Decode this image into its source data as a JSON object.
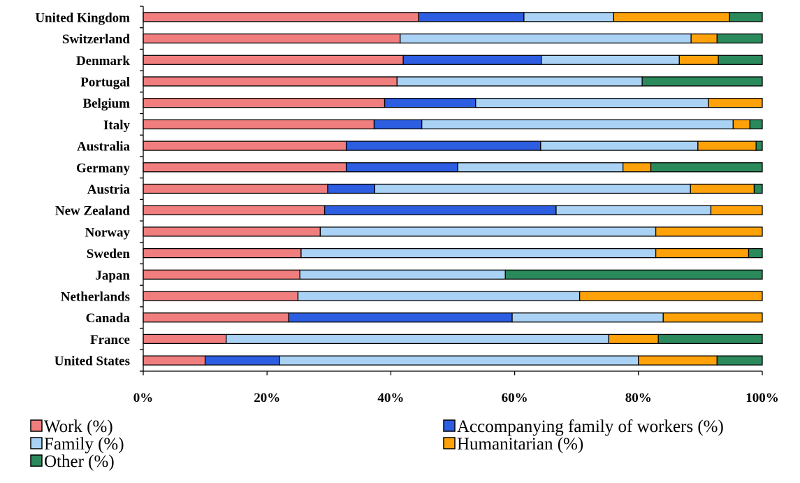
{
  "chart_data": {
    "type": "bar",
    "orientation": "horizontal",
    "stacked": "percent",
    "categories": [
      "United Kingdom",
      "Switzerland",
      "Denmark",
      "Portugal",
      "Belgium",
      "Italy",
      "Australia",
      "Germany",
      "Austria",
      "New Zealand",
      "Norway",
      "Sweden",
      "Japan",
      "Netherlands",
      "Canada",
      "France",
      "United States"
    ],
    "series": [
      {
        "name": "Work (%)",
        "color": "#f07e7e",
        "values": [
          44.5,
          41.5,
          42.0,
          41.0,
          39.0,
          37.3,
          32.8,
          32.8,
          29.8,
          29.3,
          28.6,
          25.5,
          25.3,
          25.0,
          23.5,
          13.4,
          10.0
        ]
      },
      {
        "name": "Accompanying family of workers (%)",
        "color": "#2d5de0",
        "values": [
          17.0,
          0,
          22.3,
          0,
          14.7,
          7.7,
          31.4,
          18.0,
          7.6,
          37.4,
          0,
          0,
          0,
          0,
          36.1,
          0,
          12.0
        ]
      },
      {
        "name": "Family (%)",
        "color": "#a9d2f5",
        "values": [
          14.5,
          47.0,
          22.3,
          39.6,
          37.6,
          50.3,
          25.4,
          26.7,
          51.0,
          25.0,
          54.2,
          57.3,
          33.2,
          45.5,
          24.4,
          61.8,
          58.0
        ]
      },
      {
        "name": "Humanitarian (%)",
        "color": "#ffa20a",
        "values": [
          18.7,
          4.2,
          6.3,
          0,
          8.7,
          2.7,
          9.4,
          4.5,
          10.3,
          8.3,
          17.2,
          15.0,
          0,
          29.5,
          16.0,
          8.0,
          12.7
        ]
      },
      {
        "name": "Other (%)",
        "color": "#2a8a5c",
        "values": [
          5.3,
          7.3,
          7.1,
          19.4,
          0,
          2.0,
          1.0,
          18.0,
          1.3,
          0,
          0,
          2.2,
          41.5,
          0,
          0,
          16.8,
          7.3
        ]
      }
    ],
    "xlim": [
      0,
      100
    ],
    "xticks": [
      "0%",
      "20%",
      "40%",
      "60%",
      "80%",
      "100%"
    ],
    "grid": false,
    "legend_position": "bottom",
    "title": "",
    "xlabel": "",
    "ylabel": ""
  }
}
